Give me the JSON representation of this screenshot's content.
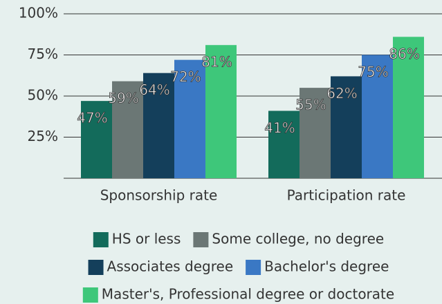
{
  "chart_data": {
    "type": "bar",
    "categories": [
      "Sponsorship rate",
      "Participation rate"
    ],
    "series": [
      {
        "name": "HS or less",
        "color": "#136b5b",
        "values": [
          47,
          41
        ],
        "value_labels": [
          "47%",
          "41%"
        ]
      },
      {
        "name": "Some college, no degree",
        "color": "#6b7775",
        "values": [
          59,
          55
        ],
        "value_labels": [
          "59%",
          "55%"
        ]
      },
      {
        "name": "Associates degree",
        "color": "#143f5b",
        "values": [
          64,
          62
        ],
        "value_labels": [
          "64%",
          "62%"
        ]
      },
      {
        "name": "Bachelor's degree",
        "color": "#3a78c4",
        "values": [
          72,
          75
        ],
        "value_labels": [
          "72%",
          "75%"
        ]
      },
      {
        "name": "Master's, Professional degree or doctorate",
        "color": "#3ec77a",
        "values": [
          81,
          86
        ],
        "value_labels": [
          "81%",
          "86%"
        ]
      }
    ],
    "ylim": [
      0,
      100
    ],
    "yticks": [
      {
        "value": 25,
        "label": "25%"
      },
      {
        "value": 50,
        "label": "50%"
      },
      {
        "value": 75,
        "label": "75%"
      },
      {
        "value": 100,
        "label": "100%"
      }
    ],
    "grid": true
  }
}
